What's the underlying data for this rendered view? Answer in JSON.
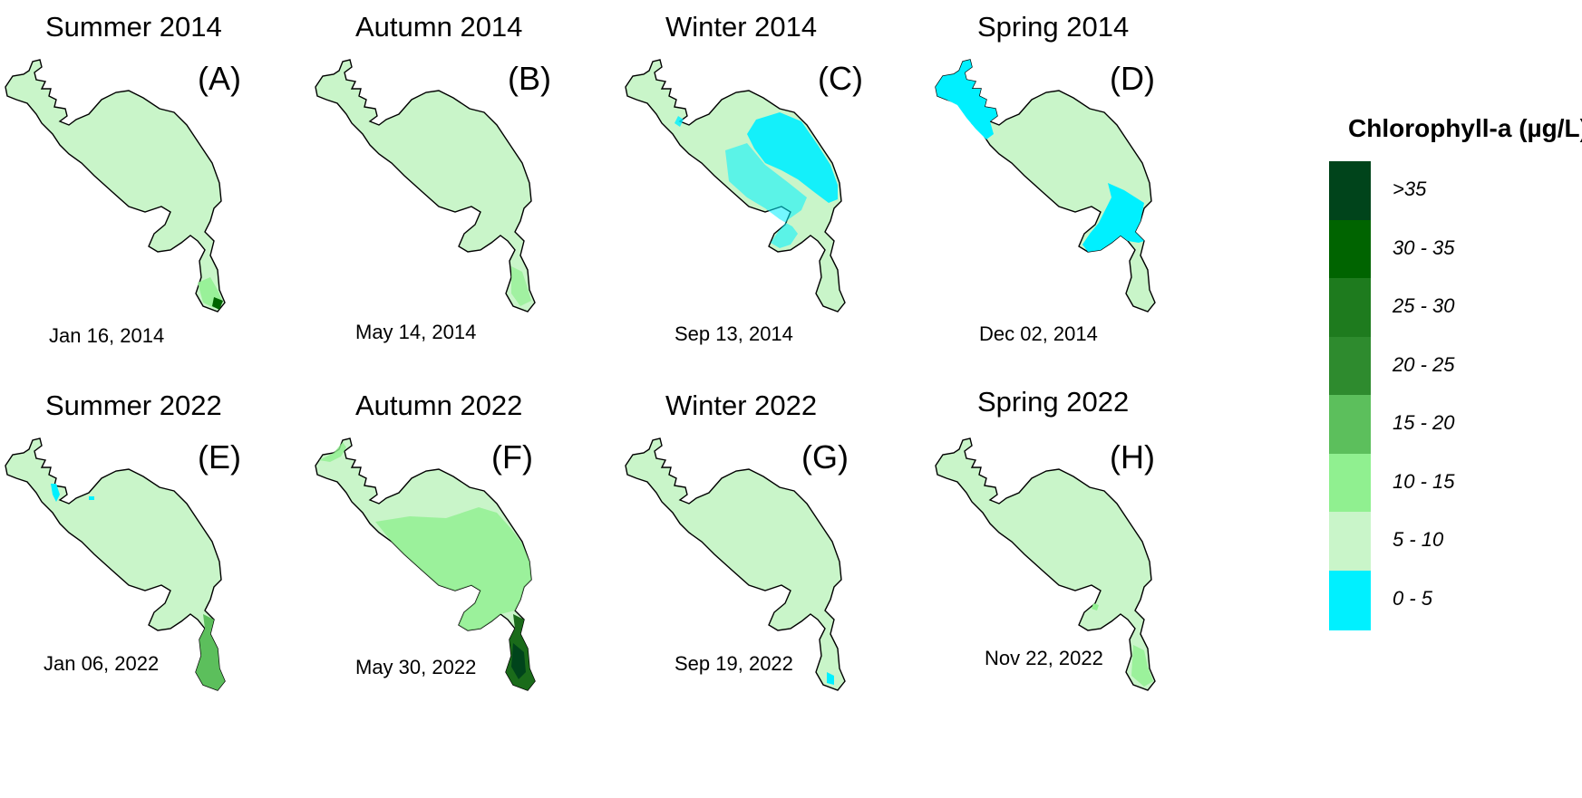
{
  "panels": [
    {
      "title": "Summer 2014",
      "letter": "(A)",
      "date": "Jan 16, 2014"
    },
    {
      "title": "Autumn 2014",
      "letter": "(B)",
      "date": "May 14, 2014"
    },
    {
      "title": "Winter 2014",
      "letter": "(C)",
      "date": "Sep 13, 2014"
    },
    {
      "title": "Spring 2014",
      "letter": "(D)",
      "date": "Dec 02, 2014"
    },
    {
      "title": "Summer 2022",
      "letter": "(E)",
      "date": "Jan 06, 2022"
    },
    {
      "title": "Autumn 2022",
      "letter": "(F)",
      "date": "May 30, 2022"
    },
    {
      "title": "Winter 2022",
      "letter": "(G)",
      "date": "Sep 19, 2022"
    },
    {
      "title": "Spring 2022",
      "letter": "(H)",
      "date": "Nov 22, 2022"
    }
  ],
  "legend": {
    "title": "Chlorophyll-a (µg/L)",
    "classes": [
      {
        "label": ">35",
        "color": "#00441b"
      },
      {
        "label": "30 - 35",
        "color": "#006400"
      },
      {
        "label": "25 - 30",
        "color": "#1e7b1e"
      },
      {
        "label": "20 - 25",
        "color": "#2e8b2e"
      },
      {
        "label": "15 - 20",
        "color": "#5cbf5c"
      },
      {
        "label": "10 - 15",
        "color": "#90f090"
      },
      {
        "label": "5 - 10",
        "color": "#c9f5c9"
      },
      {
        "label": "0 - 5",
        "color": "#00f0ff"
      }
    ]
  }
}
